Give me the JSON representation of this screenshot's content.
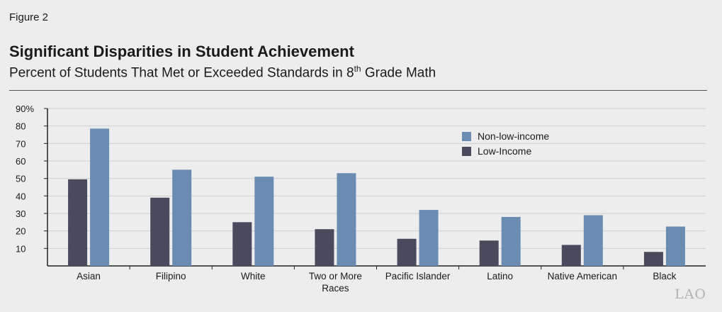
{
  "figure_label": "Figure 2",
  "title": "Significant Disparities in Student Achievement",
  "subtitle": {
    "before": "Percent of Students That Met or Exceeded Standards in 8",
    "sup": "th",
    "after": " Grade Math"
  },
  "logo_text": "LAO",
  "colors": {
    "low_income": "#4a4a5e",
    "non_low_income": "#6a8cb2",
    "grid": "#cfcfcf",
    "axis": "#222222"
  },
  "chart_data": {
    "type": "bar",
    "categories": [
      "Asian",
      "Filipino",
      "White",
      "Two or More Races",
      "Pacific Islander",
      "Latino",
      "Native American",
      "Black"
    ],
    "category_lines": [
      [
        "Asian"
      ],
      [
        "Filipino"
      ],
      [
        "White"
      ],
      [
        "Two or More",
        "Races"
      ],
      [
        "Pacific Islander"
      ],
      [
        "Latino"
      ],
      [
        "Native American"
      ],
      [
        "Black"
      ]
    ],
    "series": [
      {
        "name": "Low-Income",
        "values": [
          49.5,
          39,
          25,
          21,
          15.5,
          14.5,
          12,
          8
        ]
      },
      {
        "name": "Non-low-income",
        "values": [
          78.5,
          55,
          51,
          53,
          32,
          28,
          29,
          22.5
        ]
      }
    ],
    "ylim": [
      0,
      90
    ],
    "yticks": [
      10,
      20,
      30,
      40,
      50,
      60,
      70,
      80,
      90
    ],
    "ytick_labels": [
      "10",
      "20",
      "30",
      "40",
      "50",
      "60",
      "70",
      "80",
      "90%"
    ],
    "legend": [
      {
        "label": "Non-low-income",
        "series": 1
      },
      {
        "label": "Low-Income",
        "series": 0
      }
    ],
    "legend_position": "top-right",
    "grid": true,
    "xlabel": "",
    "ylabel": ""
  }
}
